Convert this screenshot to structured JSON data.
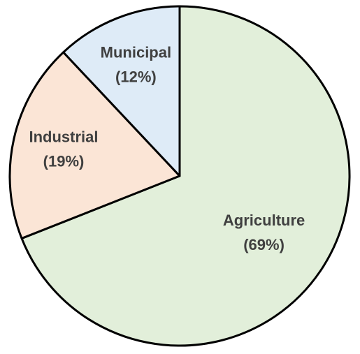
{
  "chart_data": {
    "type": "pie",
    "categories": [
      "Agriculture",
      "Industrial",
      "Municipal"
    ],
    "values": [
      69,
      19,
      12
    ],
    "value_labels": [
      "(69%)",
      "(19%)",
      "(12%)"
    ],
    "colors": [
      "#e2efda",
      "#fbe5d6",
      "#deebf7"
    ]
  }
}
